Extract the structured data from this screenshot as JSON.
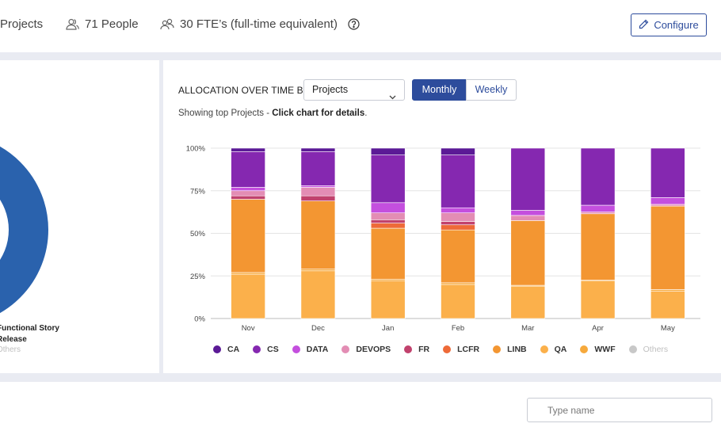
{
  "header": {
    "projects_label": "Projects",
    "people_label": "71 People",
    "fte_label": "30 FTE’s (full-time equivalent)",
    "configure_label": "Configure"
  },
  "donut": {
    "color": "#2a62ad",
    "legend": [
      "Functional Story",
      "Release",
      "Others"
    ]
  },
  "allocation": {
    "by_label": "ALLOCATION OVER TIME BY",
    "by_value": "Projects",
    "monthly_label": "Monthly",
    "weekly_label": "Weekly",
    "hint_prefix": "Showing top Projects - ",
    "hint_bold": "Click chart for details",
    "hint_suffix": "."
  },
  "chart_data": {
    "type": "bar",
    "stacked": true,
    "categories": [
      "Nov",
      "Dec",
      "Jan",
      "Feb",
      "Mar",
      "Apr",
      "May"
    ],
    "y_ticks": [
      "0%",
      "25%",
      "50%",
      "75%",
      "100%"
    ],
    "ylim": [
      0,
      100
    ],
    "grid": true,
    "legend_position": "bottom",
    "series": [
      {
        "name": "QA",
        "color": "#fbb04b",
        "values": [
          26,
          28,
          22,
          20,
          19,
          22,
          16
        ]
      },
      {
        "name": "WWF",
        "color": "#f6a93c",
        "values": [
          1,
          1,
          1,
          1,
          0.5,
          0.5,
          1
        ]
      },
      {
        "name": "LINB",
        "color": "#f39632",
        "values": [
          43,
          40,
          30,
          31,
          38,
          39,
          49
        ]
      },
      {
        "name": "LCFR",
        "color": "#ee6a38",
        "values": [
          0,
          0,
          3,
          3,
          0,
          0,
          0
        ]
      },
      {
        "name": "FR",
        "color": "#c1426d",
        "values": [
          2,
          3,
          2,
          2,
          0,
          0,
          0
        ]
      },
      {
        "name": "DEVOPS",
        "color": "#e38db4",
        "values": [
          3,
          5,
          4,
          5,
          3,
          1,
          1
        ]
      },
      {
        "name": "DATA",
        "color": "#c44fde",
        "values": [
          2,
          1,
          6,
          3,
          3,
          4,
          4
        ]
      },
      {
        "name": "CS",
        "color": "#8528b0",
        "values": [
          21,
          20,
          28,
          31,
          36.5,
          33.5,
          29
        ]
      },
      {
        "name": "CA",
        "color": "#5b1a96",
        "values": [
          2,
          2,
          4,
          4,
          0,
          0,
          0
        ]
      },
      {
        "name": "Others",
        "color": "#c8c8c8",
        "values": [
          0,
          0,
          0,
          0,
          0,
          0,
          0
        ]
      }
    ],
    "legend_order": [
      "CA",
      "CS",
      "DATA",
      "DEVOPS",
      "FR",
      "LCFR",
      "LINB",
      "QA",
      "WWF",
      "Others"
    ]
  },
  "search": {
    "placeholder": "Type name"
  }
}
